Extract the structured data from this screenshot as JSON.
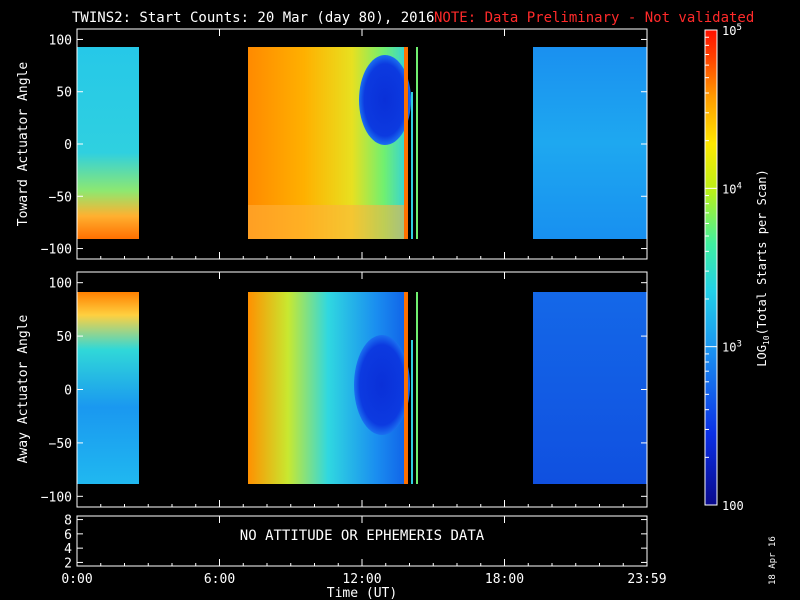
{
  "header": {
    "title": "TWINS2: Start Counts: 20 Mar (day  80), 2016",
    "note": "NOTE: Data Preliminary - Not validated"
  },
  "footer": {
    "date_stamp": "18 Apr 16"
  },
  "colors": {
    "background": "#000000",
    "text": "#ffffff",
    "note": "#ff2a2a"
  },
  "chart_data": [
    {
      "type": "heatmap",
      "ylabel": "Toward Actuator Angle",
      "ylim": [
        -110,
        110
      ],
      "yticks": [
        100,
        50,
        0,
        -50,
        -100
      ],
      "xlim": [
        0,
        24
      ],
      "xticks": [
        "0:00",
        "6:00",
        "12:00",
        "18:00",
        "23:59"
      ],
      "data_blocks_hours": [
        [
          0.3,
          2.4
        ],
        [
          7.0,
          13.9
        ],
        [
          19.3,
          24.0
        ]
      ],
      "thin_lines_hours": [
        13.8,
        14.1
      ],
      "angle_coverage": [
        -90,
        90
      ],
      "features": "high counts (red/orange) over 7:00-11:00; low counts (dark blue) near 50 deg around 11:30-13:30; low-mid counts in 19:20-24:00 block"
    },
    {
      "type": "heatmap",
      "ylabel": "Away Actuator Angle",
      "ylim": [
        -110,
        110
      ],
      "yticks": [
        100,
        50,
        0,
        -50,
        -100
      ],
      "xlim": [
        0,
        24
      ],
      "xticks": [
        "0:00",
        "6:00",
        "12:00",
        "18:00",
        "23:59"
      ],
      "data_blocks_hours": [
        [
          0.3,
          2.4
        ],
        [
          7.0,
          13.9
        ],
        [
          19.3,
          24.0
        ]
      ],
      "thin_lines_hours": [
        13.8,
        14.1
      ],
      "angle_coverage": [
        -90,
        90
      ],
      "features": "orange near +90 deg early; low counts (dark blue) around 0-50 deg at 11:30-13:30; blue in 19:20-24:00 block"
    },
    {
      "type": "line",
      "yticks": [
        8,
        6,
        4,
        2
      ],
      "ylim": [
        1.5,
        8.5
      ],
      "xlim": [
        0,
        24
      ],
      "message": "NO ATTITUDE OR EPHEMERIS DATA",
      "xlabel": "Time (UT)",
      "xticks": [
        "0:00",
        "6:00",
        "12:00",
        "18:00",
        "23:59"
      ]
    }
  ],
  "colorbar": {
    "label": "LOG",
    "label_sub": "10",
    "label_rest": "(Total Starts per Scan)",
    "range": [
      100,
      100000
    ],
    "ticks": [
      {
        "value": 100000,
        "text": "10",
        "sup": "5"
      },
      {
        "value": 10000,
        "text": "10",
        "sup": "4"
      },
      {
        "value": 1000,
        "text": "10",
        "sup": "3"
      },
      {
        "value": 100,
        "text": "100",
        "sup": ""
      }
    ]
  }
}
